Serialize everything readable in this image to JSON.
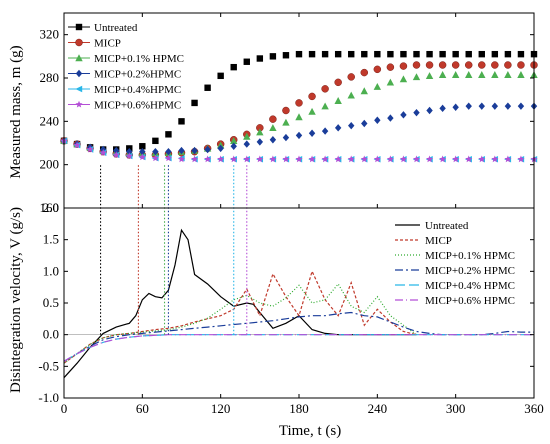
{
  "figure": {
    "top_ylabel": "Measured mass, m (g)",
    "bottom_ylabel": "Disintegration velocity, V (g/s)",
    "xlabel": "Time, t (s)"
  },
  "chart_data": [
    {
      "type": "scatter",
      "panel": "top",
      "ylabel": "Measured mass, m (g)",
      "xlim": [
        0,
        360
      ],
      "ylim": [
        160,
        340
      ],
      "x_ticks": [
        0,
        60,
        120,
        180,
        240,
        300,
        360
      ],
      "y_ticks": [
        160,
        200,
        240,
        280,
        320
      ],
      "grid": false,
      "legend": "top-left",
      "series": [
        {
          "name": "Untreated",
          "color": "#000000",
          "marker": "square",
          "x": [
            0,
            10,
            20,
            30,
            40,
            50,
            60,
            70,
            80,
            90,
            100,
            110,
            120,
            130,
            140,
            150,
            160,
            170,
            180,
            190,
            200,
            210,
            220,
            230,
            240,
            250,
            260,
            270,
            280,
            290,
            300,
            310,
            320,
            330,
            340,
            350,
            360
          ],
          "y": [
            222,
            219,
            216,
            214,
            214,
            215,
            217,
            222,
            228,
            240,
            257,
            271,
            282,
            290,
            295,
            298,
            300,
            301,
            302,
            302,
            302,
            302,
            302,
            302,
            302,
            302,
            302,
            302,
            302,
            302,
            302,
            302,
            302,
            302,
            302,
            302,
            302
          ]
        },
        {
          "name": "MICP",
          "color": "#c0392b",
          "marker": "circle",
          "x": [
            0,
            10,
            20,
            30,
            40,
            50,
            60,
            70,
            80,
            90,
            100,
            110,
            120,
            130,
            140,
            150,
            160,
            170,
            180,
            190,
            200,
            210,
            220,
            230,
            240,
            250,
            260,
            270,
            280,
            290,
            300,
            310,
            320,
            330,
            340,
            350,
            360
          ],
          "y": [
            222,
            219,
            215,
            212,
            210,
            209,
            209,
            209,
            210,
            211,
            212,
            215,
            219,
            223,
            228,
            234,
            242,
            250,
            257,
            263,
            270,
            276,
            281,
            285,
            288,
            290,
            291,
            292,
            292,
            292,
            292,
            292,
            292,
            292,
            292,
            292,
            292
          ]
        },
        {
          "name": "MICP+0.1% HPMC",
          "color": "#4caf50",
          "marker": "triangle",
          "x": [
            0,
            10,
            20,
            30,
            40,
            50,
            60,
            70,
            80,
            90,
            100,
            110,
            120,
            130,
            140,
            150,
            160,
            170,
            180,
            190,
            200,
            210,
            220,
            230,
            240,
            250,
            260,
            270,
            280,
            290,
            300,
            310,
            320,
            330,
            340,
            350,
            360
          ],
          "y": [
            222,
            219,
            216,
            213,
            212,
            211,
            211,
            211,
            211,
            212,
            213,
            215,
            218,
            222,
            226,
            230,
            234,
            239,
            244,
            249,
            254,
            259,
            264,
            268,
            272,
            276,
            279,
            281,
            282,
            283,
            283,
            283,
            283,
            283,
            283,
            283,
            283
          ]
        },
        {
          "name": "MICP+0.2%HPMC",
          "color": "#1a3d9a",
          "marker": "diamond",
          "x": [
            0,
            10,
            20,
            30,
            40,
            50,
            60,
            70,
            80,
            90,
            100,
            110,
            120,
            130,
            140,
            150,
            160,
            170,
            180,
            190,
            200,
            210,
            220,
            230,
            240,
            250,
            260,
            270,
            280,
            290,
            300,
            310,
            320,
            330,
            340,
            350,
            360
          ],
          "y": [
            222,
            219,
            216,
            214,
            213,
            212,
            212,
            212,
            212,
            213,
            213,
            214,
            215,
            217,
            219,
            221,
            223,
            225,
            227,
            229,
            231,
            234,
            236,
            238,
            241,
            243,
            246,
            248,
            250,
            252,
            253,
            254,
            254,
            254,
            254,
            254,
            254
          ]
        },
        {
          "name": "MICP+0.4%HPMC",
          "color": "#29b6e8",
          "marker": "triangle-left",
          "x": [
            0,
            10,
            20,
            30,
            40,
            50,
            60,
            70,
            80,
            90,
            100,
            110,
            120,
            130,
            140,
            150,
            160,
            170,
            180,
            190,
            200,
            210,
            220,
            230,
            240,
            250,
            260,
            270,
            280,
            290,
            300,
            310,
            320,
            330,
            340,
            350,
            360
          ],
          "y": [
            222,
            218,
            214,
            211,
            209,
            208,
            207,
            206,
            206,
            206,
            205,
            205,
            205,
            205,
            205,
            205,
            205,
            205,
            205,
            205,
            205,
            205,
            205,
            205,
            205,
            205,
            205,
            205,
            205,
            205,
            205,
            205,
            205,
            205,
            205,
            205,
            205
          ]
        },
        {
          "name": "MICP+0.6%HPMC",
          "color": "#b44fd6",
          "marker": "star",
          "x": [
            0,
            10,
            20,
            30,
            40,
            50,
            60,
            70,
            80,
            90,
            100,
            110,
            120,
            130,
            140,
            150,
            160,
            170,
            180,
            190,
            200,
            210,
            220,
            230,
            240,
            250,
            260,
            270,
            280,
            290,
            300,
            310,
            320,
            330,
            340,
            350,
            360
          ],
          "y": [
            222,
            218,
            214,
            211,
            209,
            208,
            207,
            206,
            206,
            205,
            205,
            205,
            205,
            205,
            205,
            205,
            205,
            205,
            205,
            205,
            205,
            205,
            205,
            205,
            205,
            205,
            205,
            205,
            205,
            205,
            205,
            205,
            205,
            205,
            205,
            205,
            205
          ]
        }
      ]
    },
    {
      "type": "line",
      "panel": "bottom",
      "ylabel": "Disintegration velocity, V (g/s)",
      "xlabel": "Time, t (s)",
      "xlim": [
        0,
        360
      ],
      "ylim": [
        -1.0,
        2.0
      ],
      "x_ticks": [
        0,
        60,
        120,
        180,
        240,
        300,
        360
      ],
      "y_ticks": [
        -1.0,
        -0.5,
        0.0,
        0.5,
        1.0,
        1.5,
        2.0
      ],
      "grid": false,
      "legend": "top-right",
      "series": [
        {
          "name": "Untreated",
          "color": "#000000",
          "dash": "",
          "x": [
            0,
            10,
            20,
            30,
            40,
            50,
            55,
            60,
            65,
            70,
            75,
            80,
            85,
            90,
            95,
            100,
            110,
            120,
            130,
            140,
            145,
            150,
            160,
            170,
            180,
            190,
            200,
            210,
            230,
            250,
            270
          ],
          "y": [
            -0.68,
            -0.45,
            -0.2,
            0.02,
            0.12,
            0.18,
            0.3,
            0.55,
            0.65,
            0.6,
            0.58,
            0.7,
            1.1,
            1.65,
            1.5,
            0.95,
            0.8,
            0.6,
            0.45,
            0.5,
            0.48,
            0.35,
            0.1,
            0.18,
            0.3,
            0.08,
            0.02,
            0.0,
            0.0,
            0.0,
            0.0
          ]
        },
        {
          "name": "MICP",
          "color": "#c0392b",
          "dash": "3,2",
          "x": [
            0,
            10,
            20,
            30,
            40,
            50,
            60,
            70,
            80,
            90,
            100,
            110,
            120,
            130,
            140,
            150,
            160,
            170,
            180,
            190,
            200,
            210,
            220,
            230,
            240,
            250,
            260,
            270
          ],
          "y": [
            -0.45,
            -0.3,
            -0.15,
            -0.05,
            0.0,
            0.02,
            0.05,
            0.08,
            0.1,
            0.14,
            0.2,
            0.25,
            0.3,
            0.4,
            0.72,
            0.3,
            0.96,
            0.6,
            0.3,
            1.0,
            0.55,
            0.3,
            0.82,
            0.15,
            0.4,
            0.2,
            0.05,
            0.0
          ]
        },
        {
          "name": "MICP+0.1% HPMC",
          "color": "#2eaa2e",
          "dash": "1,2",
          "x": [
            0,
            10,
            20,
            30,
            40,
            50,
            60,
            70,
            80,
            90,
            100,
            110,
            120,
            130,
            140,
            150,
            160,
            170,
            180,
            190,
            200,
            210,
            220,
            230,
            240,
            250,
            260,
            270
          ],
          "y": [
            -0.45,
            -0.3,
            -0.15,
            -0.05,
            0.0,
            0.02,
            0.04,
            0.06,
            0.08,
            0.12,
            0.18,
            0.26,
            0.4,
            0.55,
            0.62,
            0.5,
            0.45,
            0.58,
            0.78,
            0.5,
            0.55,
            0.8,
            0.45,
            0.35,
            0.6,
            0.3,
            0.15,
            0.0
          ]
        },
        {
          "name": "MICP+0.2% HPMC",
          "color": "#1a3d9a",
          "dash": "8,3,2,3",
          "x": [
            0,
            10,
            20,
            30,
            40,
            50,
            60,
            70,
            80,
            90,
            100,
            110,
            120,
            130,
            140,
            150,
            160,
            170,
            180,
            190,
            200,
            210,
            220,
            230,
            240,
            250,
            260,
            270,
            280,
            290,
            300,
            310,
            320,
            330,
            340,
            350,
            360
          ],
          "y": [
            -0.42,
            -0.3,
            -0.18,
            -0.08,
            -0.03,
            0.0,
            0.02,
            0.04,
            0.06,
            0.08,
            0.1,
            0.12,
            0.14,
            0.16,
            0.18,
            0.2,
            0.22,
            0.25,
            0.28,
            0.3,
            0.3,
            0.33,
            0.35,
            0.3,
            0.28,
            0.2,
            0.12,
            0.05,
            0.02,
            0.0,
            0.0,
            0.0,
            0.0,
            0.02,
            0.05,
            0.04,
            0.04
          ]
        },
        {
          "name": "MICP+0.4% HPMC",
          "color": "#29b6e8",
          "dash": "10,4",
          "x": [
            0,
            10,
            20,
            30,
            40,
            50,
            60,
            70,
            80,
            90,
            100,
            110,
            120,
            130,
            140,
            150,
            160,
            170,
            180,
            190,
            200,
            220,
            240,
            260,
            280,
            300,
            320,
            340,
            360
          ],
          "y": [
            -0.42,
            -0.3,
            -0.2,
            -0.12,
            -0.07,
            -0.04,
            -0.02,
            -0.01,
            0.0,
            0.0,
            0.0,
            0.0,
            0.0,
            0.0,
            0.0,
            0.0,
            0.0,
            0.0,
            0.0,
            0.0,
            0.0,
            0.0,
            0.0,
            0.0,
            0.0,
            0.0,
            0.0,
            0.0,
            0.0
          ]
        },
        {
          "name": "MICP+0.6% HPMC",
          "color": "#b44fd6",
          "dash": "8,3,1,3",
          "x": [
            0,
            10,
            20,
            30,
            40,
            50,
            60,
            70,
            80,
            90,
            100,
            110,
            120,
            130,
            140,
            150,
            160,
            170,
            180,
            190,
            200,
            220,
            240,
            260,
            280,
            300,
            320,
            340,
            360
          ],
          "y": [
            -0.42,
            -0.3,
            -0.2,
            -0.12,
            -0.07,
            -0.04,
            -0.02,
            -0.01,
            0.0,
            0.0,
            0.0,
            0.0,
            0.0,
            0.0,
            0.0,
            0.0,
            0.0,
            0.0,
            0.0,
            0.0,
            0.0,
            0.0,
            0.0,
            0.0,
            0.0,
            0.0,
            0.0,
            0.0,
            0.0
          ]
        }
      ]
    }
  ],
  "markers": {
    "vertical_lines": [
      {
        "t": 28,
        "color": "#000000"
      },
      {
        "t": 57,
        "color": "#c0392b"
      },
      {
        "t": 77,
        "color": "#4caf50"
      },
      {
        "t": 80,
        "color": "#1a3d9a"
      },
      {
        "t": 130,
        "color": "#29b6e8"
      },
      {
        "t": 140,
        "color": "#b44fd6"
      }
    ]
  }
}
